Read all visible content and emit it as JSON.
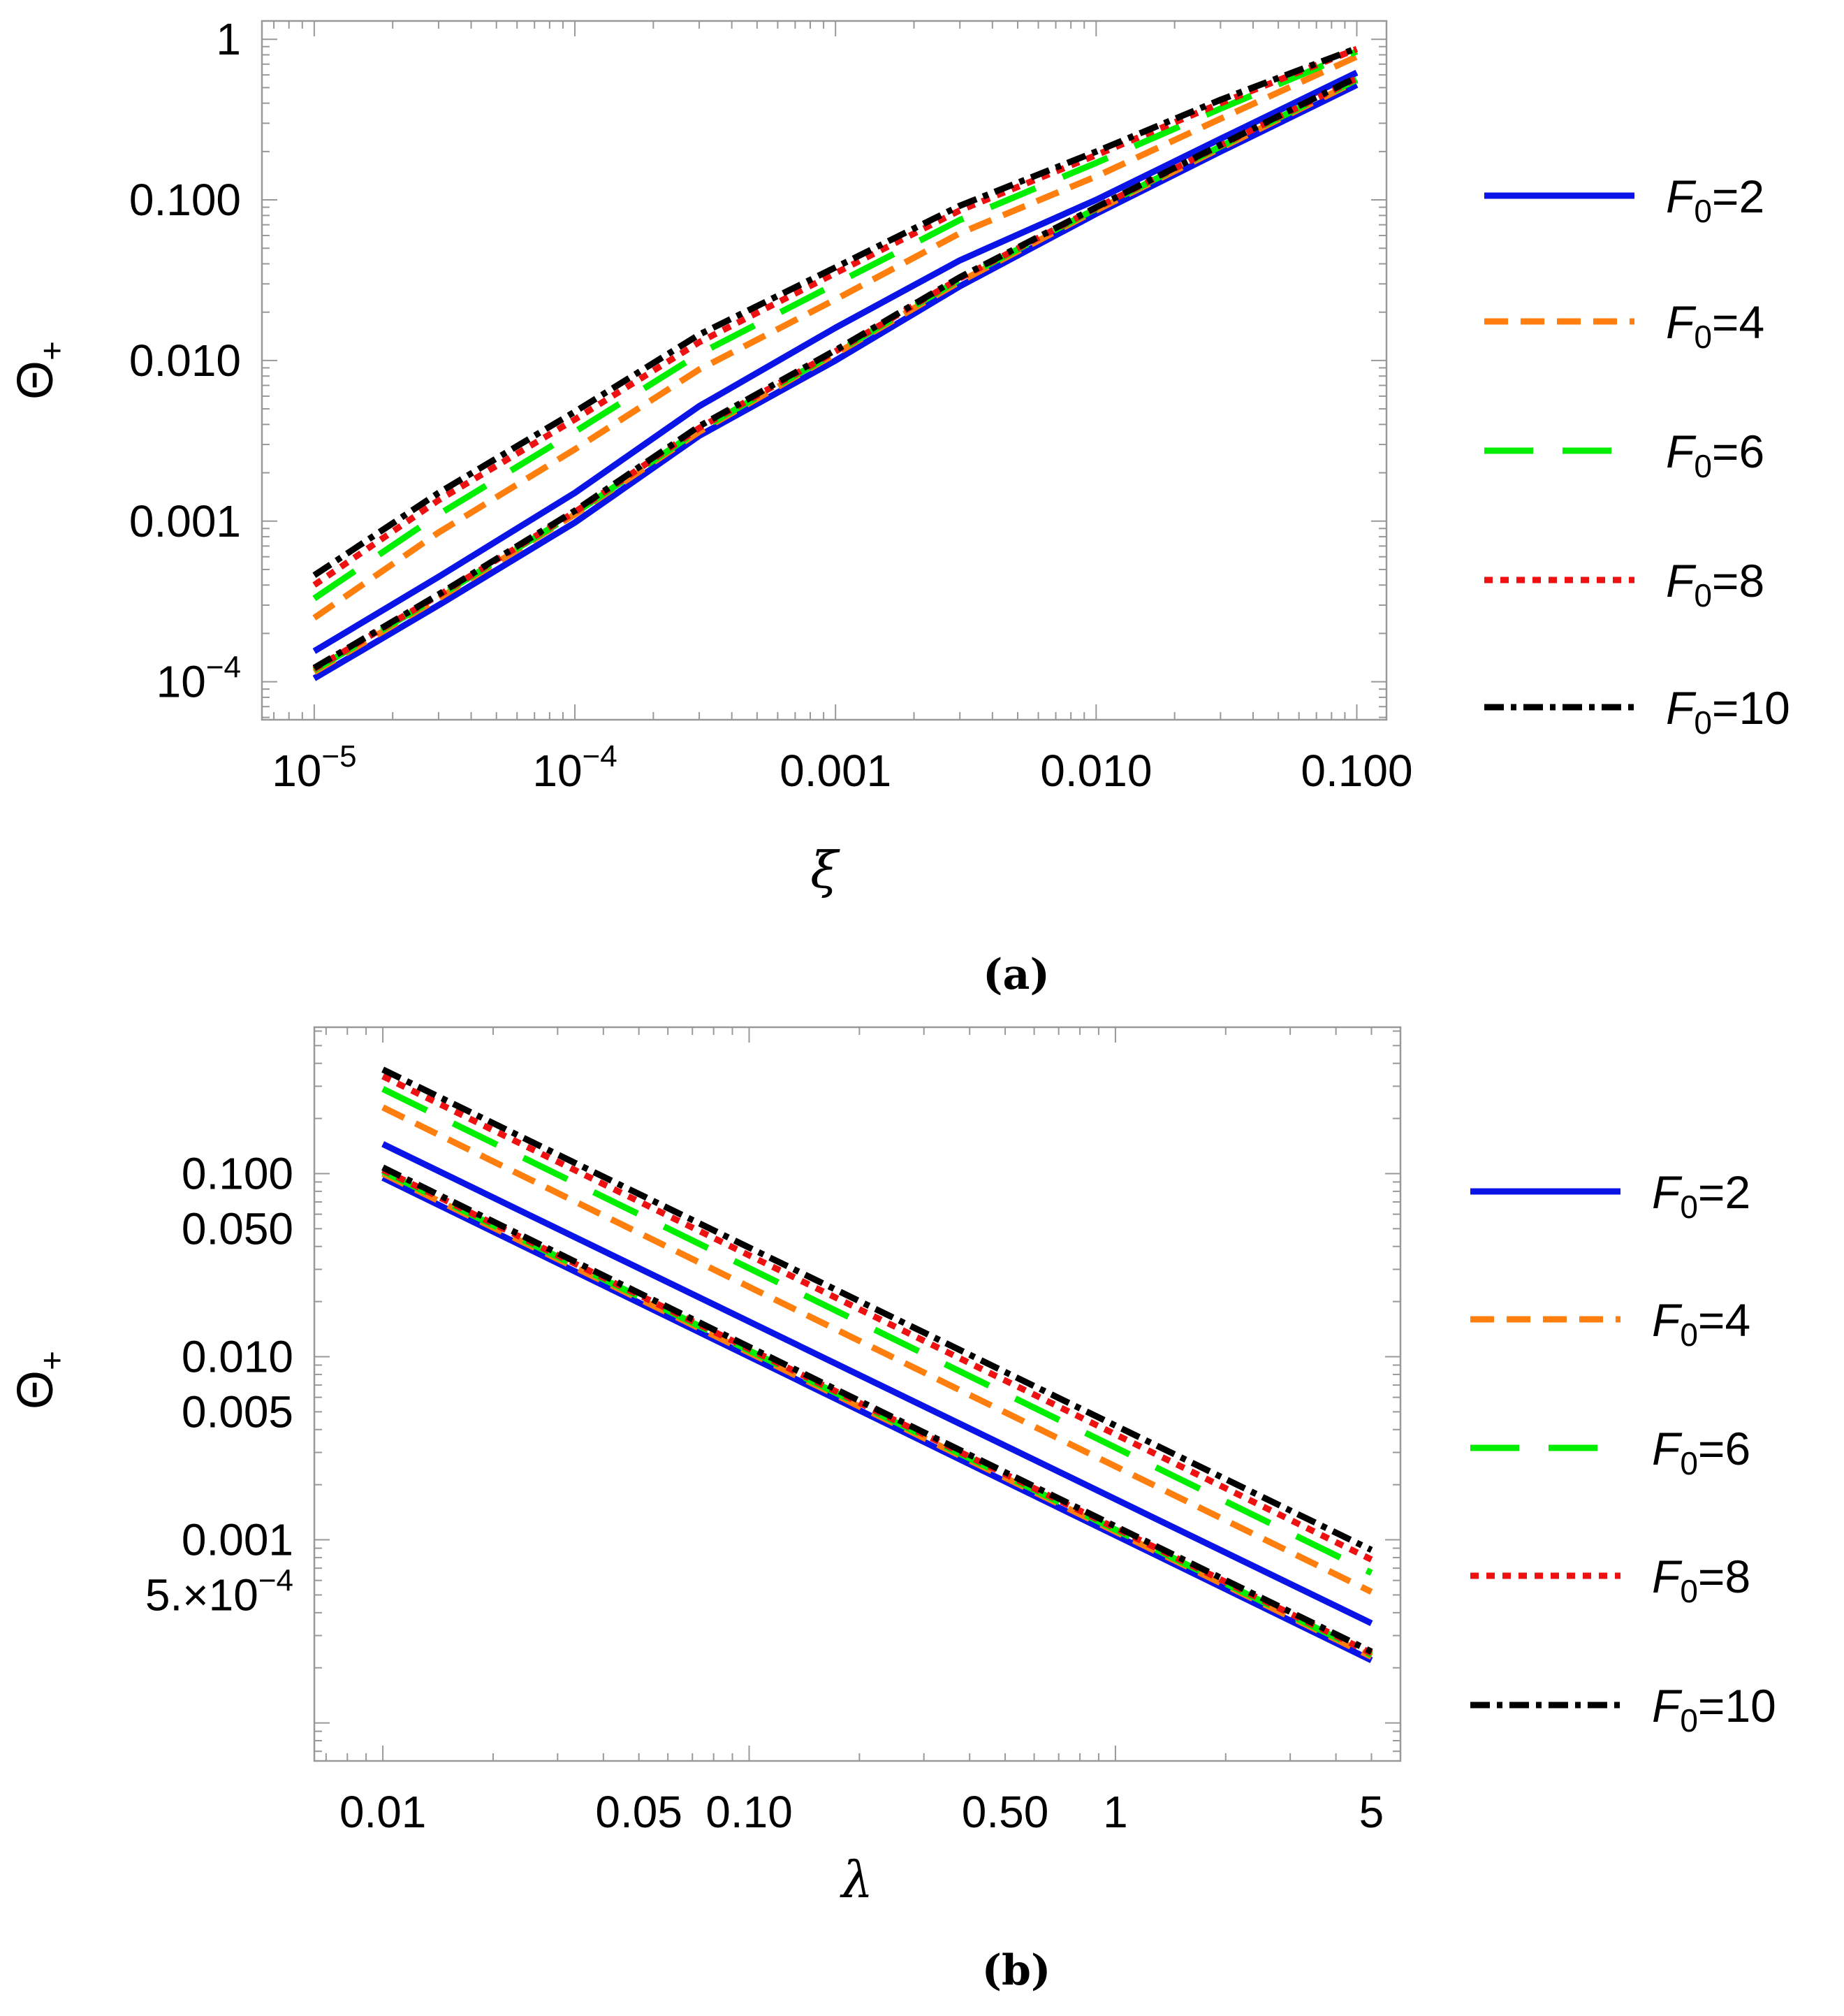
{
  "chart_data": [
    {
      "type": "line",
      "panel": "a",
      "caption": "(a)",
      "xlabel": "ξ",
      "ylabel": {
        "main": "Θ",
        "sub": "+"
      },
      "xscale": "log",
      "yscale": "log",
      "xlim": [
        6.3e-06,
        0.13
      ],
      "ylim": [
        5.8e-05,
        1.3
      ],
      "xticks": [
        {
          "value": 1e-05,
          "mantissa": "10",
          "exp": "−5"
        },
        {
          "value": 0.0001,
          "mantissa": "10",
          "exp": "−4"
        },
        {
          "value": 0.001,
          "text": "0.001"
        },
        {
          "value": 0.01,
          "text": "0.010"
        },
        {
          "value": 0.1,
          "text": "0.100"
        }
      ],
      "yticks": [
        {
          "value": 0.0001,
          "mantissa": "10",
          "exp": "−4"
        },
        {
          "value": 0.001,
          "text": "0.001"
        },
        {
          "value": 0.01,
          "text": "0.010"
        },
        {
          "value": 0.1,
          "text": "0.100"
        },
        {
          "value": 1,
          "text": "1"
        }
      ],
      "legend_position": "right",
      "series": [
        {
          "key": "F2a",
          "name": "F0=2",
          "branch": "upper",
          "x": [
            1e-05,
            3e-05,
            0.0001,
            0.0003,
            0.001,
            0.003,
            0.01,
            0.03,
            0.1
          ],
          "y": [
            0.000155,
            0.00045,
            0.0015,
            0.0052,
            0.016,
            0.042,
            0.1,
            0.24,
            0.62
          ]
        },
        {
          "key": "F2b",
          "name": "F0=2",
          "branch": "lower",
          "x": [
            1e-05,
            3e-05,
            0.0001,
            0.0003,
            0.001,
            0.003,
            0.01,
            0.03,
            0.1
          ],
          "y": [
            0.000105,
            0.0003,
            0.00098,
            0.0034,
            0.01,
            0.029,
            0.082,
            0.2,
            0.52
          ]
        },
        {
          "key": "F4a",
          "name": "F0=4",
          "branch": "upper",
          "x": [
            1e-05,
            3e-05,
            0.0001,
            0.0003,
            0.001,
            0.003,
            0.01,
            0.03,
            0.1
          ],
          "y": [
            0.00025,
            0.00085,
            0.0028,
            0.0088,
            0.024,
            0.062,
            0.14,
            0.32,
            0.78
          ]
        },
        {
          "key": "F4b",
          "name": "F0=4",
          "branch": "lower",
          "x": [
            1e-05,
            3e-05,
            0.0001,
            0.0003,
            0.001,
            0.003,
            0.01,
            0.03,
            0.1
          ],
          "y": [
            0.000115,
            0.00033,
            0.0011,
            0.0036,
            0.011,
            0.031,
            0.086,
            0.21,
            0.55
          ]
        },
        {
          "key": "F6a",
          "name": "F0=6",
          "branch": "upper",
          "x": [
            1e-05,
            3e-05,
            0.0001,
            0.0003,
            0.001,
            0.003,
            0.01,
            0.03,
            0.1
          ],
          "y": [
            0.00033,
            0.0011,
            0.0036,
            0.011,
            0.03,
            0.075,
            0.17,
            0.37,
            0.84
          ]
        },
        {
          "key": "F6b",
          "name": "F0=6",
          "branch": "lower",
          "x": [
            1e-05,
            3e-05,
            0.0001,
            0.0003,
            0.001,
            0.003,
            0.01,
            0.03,
            0.1
          ],
          "y": [
            0.000118,
            0.00034,
            0.00112,
            0.0037,
            0.0112,
            0.032,
            0.088,
            0.215,
            0.56
          ]
        },
        {
          "key": "F8a",
          "name": "F0=8",
          "branch": "upper",
          "x": [
            1e-05,
            3e-05,
            0.0001,
            0.0003,
            0.001,
            0.003,
            0.01,
            0.03,
            0.1
          ],
          "y": [
            0.0004,
            0.00135,
            0.0043,
            0.013,
            0.035,
            0.086,
            0.19,
            0.4,
            0.87
          ]
        },
        {
          "key": "F8b",
          "name": "F0=8",
          "branch": "lower",
          "x": [
            1e-05,
            3e-05,
            0.0001,
            0.0003,
            0.001,
            0.003,
            0.01,
            0.03,
            0.1
          ],
          "y": [
            0.00012,
            0.000345,
            0.00114,
            0.0038,
            0.0114,
            0.0325,
            0.089,
            0.218,
            0.57
          ]
        },
        {
          "key": "F10a",
          "name": "F0=10",
          "branch": "upper",
          "x": [
            1e-05,
            3e-05,
            0.0001,
            0.0003,
            0.001,
            0.003,
            0.01,
            0.03,
            0.1
          ],
          "y": [
            0.00046,
            0.0015,
            0.0048,
            0.0145,
            0.038,
            0.092,
            0.2,
            0.42,
            0.88
          ]
        },
        {
          "key": "F10b",
          "name": "F0=10",
          "branch": "lower",
          "x": [
            1e-05,
            3e-05,
            0.0001,
            0.0003,
            0.001,
            0.003,
            0.01,
            0.03,
            0.1
          ],
          "y": [
            0.000122,
            0.00035,
            0.00116,
            0.0039,
            0.0116,
            0.033,
            0.09,
            0.22,
            0.58
          ]
        }
      ],
      "legend": [
        {
          "key": "F2",
          "prefix": "F",
          "sub": "0",
          "suffix": "=2"
        },
        {
          "key": "F4",
          "prefix": "F",
          "sub": "0",
          "suffix": "=4"
        },
        {
          "key": "F6",
          "prefix": "F",
          "sub": "0",
          "suffix": "=6"
        },
        {
          "key": "F8",
          "prefix": "F",
          "sub": "0",
          "suffix": "=8"
        },
        {
          "key": "F10",
          "prefix": "F",
          "sub": "0",
          "suffix": "=10"
        }
      ]
    },
    {
      "type": "line",
      "panel": "b",
      "caption": "(b)",
      "xlabel": "λ",
      "ylabel": {
        "main": "Θ",
        "sub": "+"
      },
      "xscale": "log",
      "yscale": "log",
      "xlim": [
        0.0065,
        6.0
      ],
      "ylim": [
        6.2e-05,
        0.63
      ],
      "xticks": [
        {
          "value": 0.01,
          "text": "0.01"
        },
        {
          "value": 0.05,
          "text": "0.05"
        },
        {
          "value": 0.1,
          "text": "0.10"
        },
        {
          "value": 0.5,
          "text": "0.50"
        },
        {
          "value": 1,
          "text": "1"
        },
        {
          "value": 5,
          "text": "5"
        }
      ],
      "yticks": [
        {
          "value": 0.1,
          "text": "0.100"
        },
        {
          "value": 0.05,
          "text": "0.050"
        },
        {
          "value": 0.01,
          "text": "0.010"
        },
        {
          "value": 0.005,
          "text": "0.005"
        },
        {
          "value": 0.001,
          "text": "0.001"
        },
        {
          "value": 0.0005,
          "mantissa": "5.×10",
          "exp": "−4"
        }
      ],
      "legend_position": "right",
      "series": [
        {
          "key": "F2a",
          "name": "F0=2",
          "branch": "upper",
          "x": [
            0.01,
            5
          ],
          "y": [
            0.145,
            0.00035
          ]
        },
        {
          "key": "F2b",
          "name": "F0=2",
          "branch": "lower",
          "x": [
            0.01,
            5
          ],
          "y": [
            0.095,
            0.00022
          ]
        },
        {
          "key": "F4a",
          "name": "F0=4",
          "branch": "upper",
          "x": [
            0.01,
            5
          ],
          "y": [
            0.23,
            0.00052
          ]
        },
        {
          "key": "F4b",
          "name": "F0=4",
          "branch": "lower",
          "x": [
            0.01,
            5
          ],
          "y": [
            0.1,
            0.00023
          ]
        },
        {
          "key": "F6a",
          "name": "F0=6",
          "branch": "upper",
          "x": [
            0.01,
            5
          ],
          "y": [
            0.29,
            0.00066
          ]
        },
        {
          "key": "F6b",
          "name": "F0=6",
          "branch": "lower",
          "x": [
            0.01,
            5
          ],
          "y": [
            0.103,
            0.000235
          ]
        },
        {
          "key": "F8a",
          "name": "F0=8",
          "branch": "upper",
          "x": [
            0.01,
            5
          ],
          "y": [
            0.34,
            0.00078
          ]
        },
        {
          "key": "F8b",
          "name": "F0=8",
          "branch": "lower",
          "x": [
            0.01,
            5
          ],
          "y": [
            0.105,
            0.00024
          ]
        },
        {
          "key": "F10a",
          "name": "F0=10",
          "branch": "upper",
          "x": [
            0.01,
            5
          ],
          "y": [
            0.37,
            0.00088
          ]
        },
        {
          "key": "F10b",
          "name": "F0=10",
          "branch": "lower",
          "x": [
            0.01,
            5
          ],
          "y": [
            0.108,
            0.000245
          ]
        }
      ],
      "legend": [
        {
          "key": "F2",
          "prefix": "F",
          "sub": "0",
          "suffix": "=2"
        },
        {
          "key": "F4",
          "prefix": "F",
          "sub": "0",
          "suffix": "=4"
        },
        {
          "key": "F6",
          "prefix": "F",
          "sub": "0",
          "suffix": "=6"
        },
        {
          "key": "F8",
          "prefix": "F",
          "sub": "0",
          "suffix": "=8"
        },
        {
          "key": "F10",
          "prefix": "F",
          "sub": "0",
          "suffix": "=10"
        }
      ]
    }
  ],
  "styles": {
    "F2": {
      "color": "#0a14e6",
      "dash": "none"
    },
    "F4": {
      "color": "#ff7f0e",
      "dash": "34 18"
    },
    "F6": {
      "color": "#00ee00",
      "dash": "70 42"
    },
    "F8": {
      "color": "#ee1111",
      "dash": "12 11"
    },
    "F10": {
      "color": "#000000",
      "dash": "28 10 8 10"
    }
  }
}
